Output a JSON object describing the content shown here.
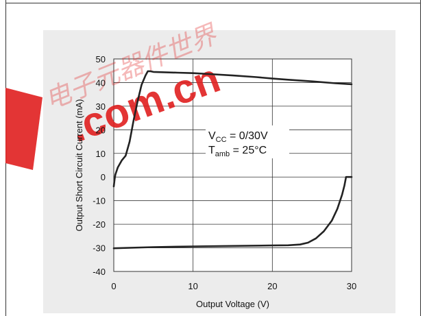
{
  "chart_data": {
    "type": "line",
    "xlabel": "Output Voltage (V)",
    "ylabel": "Output Short Circuit Current (mA)",
    "xlim": [
      0,
      30
    ],
    "ylim": [
      -40,
      50
    ],
    "x_ticks": [
      0,
      10,
      20,
      30
    ],
    "y_ticks": [
      50,
      40,
      30,
      20,
      10,
      0,
      -10,
      -20,
      -30,
      -40
    ],
    "grid": true,
    "annotation": {
      "vcc_symbol": "V",
      "vcc_sub": "CC",
      "vcc_value": " = 0/30V",
      "tamb_symbol": "T",
      "tamb_sub": "amb",
      "tamb_value": " = 25°C"
    },
    "series": [
      {
        "color": "#222222",
        "x": [
          0,
          0.1,
          0.2,
          0.5,
          1.0,
          1.5,
          2.0,
          2.5,
          3.0,
          3.5,
          4.0,
          4.3,
          4.6,
          5,
          8,
          10,
          12,
          15,
          18,
          20,
          22,
          25,
          28,
          30
        ],
        "y": [
          -4,
          -1,
          1,
          4,
          7,
          9,
          15,
          24,
          32,
          39,
          43,
          44.8,
          44.8,
          44.5,
          44.2,
          44.0,
          43.6,
          43.0,
          42.3,
          41.7,
          41.2,
          40.5,
          39.7,
          39.3
        ]
      },
      {
        "color": "#222222",
        "x": [
          0,
          5,
          10,
          15,
          20,
          22,
          23.5,
          24.5,
          25.5,
          26.5,
          27.5,
          28.2,
          28.8,
          29.1,
          29.3,
          30
        ],
        "y": [
          -30.2,
          -29.7,
          -29.4,
          -29.2,
          -29.0,
          -28.9,
          -28.6,
          -27.8,
          -26.0,
          -23.0,
          -18.5,
          -13.5,
          -7.5,
          -3.5,
          0,
          0
        ]
      }
    ]
  },
  "watermark": {
    "text": "电子元器件世界",
    "domain_text": ".com.cn",
    "color": "#e02020"
  }
}
